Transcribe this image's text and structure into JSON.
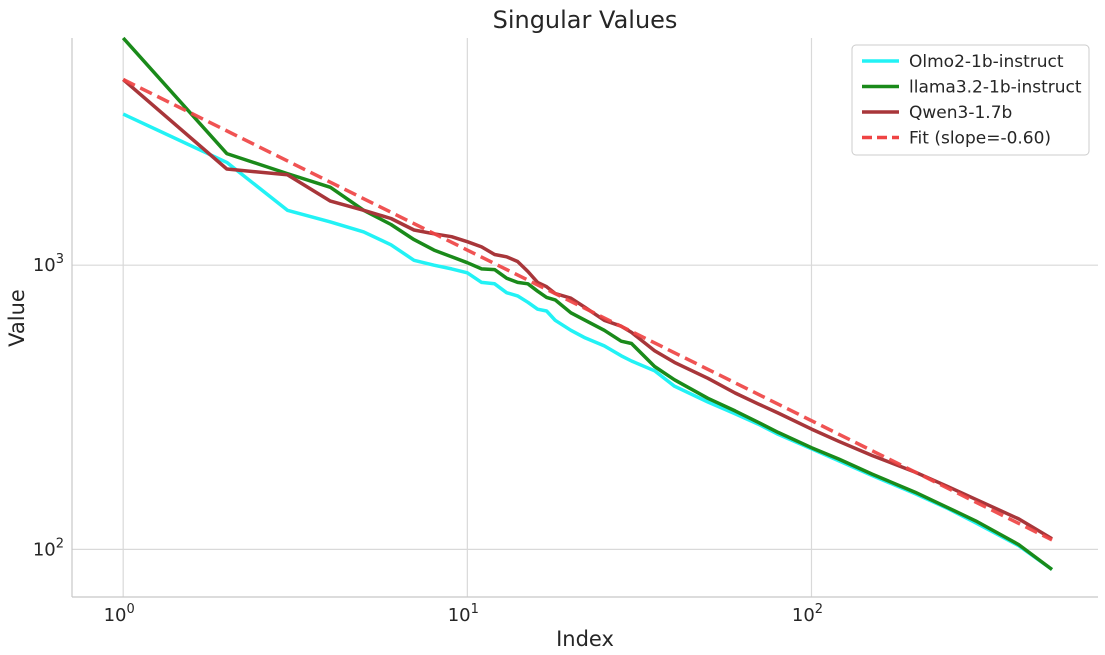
{
  "chart_data": {
    "type": "line",
    "title": "Singular Values",
    "xlabel": "Index",
    "ylabel": "Value",
    "xscale": "log",
    "yscale": "log",
    "xlim": [
      0.71,
      680
    ],
    "ylim": [
      68,
      6300
    ],
    "grid": true,
    "legend_position": "top-right",
    "x_ticks": [
      {
        "value": 1,
        "base": "10",
        "exp": "0"
      },
      {
        "value": 10,
        "base": "10",
        "exp": "1"
      },
      {
        "value": 100,
        "base": "10",
        "exp": "2"
      }
    ],
    "y_ticks": [
      {
        "value": 100,
        "base": "10",
        "exp": "2"
      },
      {
        "value": 1000,
        "base": "10",
        "exp": "3"
      }
    ],
    "series": [
      {
        "name": "Olmo2-1b-instruct",
        "color": "#22f2f5",
        "dash": "solid",
        "x": [
          1,
          2,
          3,
          4,
          5,
          6,
          7,
          8,
          9,
          10,
          11,
          12,
          13,
          14,
          15,
          16,
          17,
          18,
          20,
          22,
          25,
          28,
          30,
          35,
          40,
          50,
          60,
          70,
          80,
          100,
          120,
          150,
          200,
          250,
          300,
          400,
          500
        ],
        "y": [
          3400,
          2300,
          1560,
          1420,
          1310,
          1180,
          1040,
          1000,
          970,
          940,
          870,
          860,
          800,
          780,
          740,
          700,
          690,
          640,
          590,
          555,
          520,
          480,
          460,
          425,
          375,
          330,
          300,
          276,
          254,
          226,
          205,
          182,
          157,
          139,
          124,
          103,
          85
        ]
      },
      {
        "name": "llama3.2-1b-instruct",
        "color": "#1a8a1a",
        "dash": "solid",
        "x": [
          1,
          2,
          3,
          4,
          5,
          6,
          7,
          8,
          9,
          10,
          11,
          12,
          13,
          14,
          15,
          16,
          17,
          18,
          20,
          22,
          25,
          28,
          30,
          35,
          40,
          50,
          60,
          70,
          80,
          100,
          120,
          150,
          200,
          250,
          300,
          400,
          500
        ],
        "y": [
          6300,
          2470,
          2100,
          1880,
          1560,
          1390,
          1230,
          1130,
          1070,
          1020,
          970,
          965,
          900,
          870,
          860,
          810,
          770,
          755,
          680,
          640,
          590,
          540,
          530,
          440,
          395,
          340,
          307,
          280,
          258,
          228,
          208,
          184,
          159,
          140,
          126,
          104,
          85
        ]
      },
      {
        "name": "Qwen3-1.7b",
        "color": "#a8363a",
        "dash": "solid",
        "x": [
          1,
          2,
          3,
          4,
          5,
          6,
          7,
          8,
          9,
          10,
          11,
          12,
          13,
          14,
          15,
          16,
          17,
          18,
          20,
          22,
          25,
          28,
          30,
          35,
          40,
          50,
          60,
          70,
          80,
          100,
          120,
          150,
          200,
          250,
          300,
          400,
          500
        ],
        "y": [
          4500,
          2180,
          2080,
          1680,
          1560,
          1460,
          1330,
          1290,
          1260,
          1210,
          1160,
          1090,
          1070,
          1030,
          950,
          870,
          840,
          795,
          765,
          710,
          640,
          610,
          580,
          500,
          455,
          400,
          355,
          325,
          302,
          265,
          240,
          214,
          187,
          166,
          150,
          128,
          109
        ]
      },
      {
        "name": "Fit (slope=-0.60)",
        "color": "#ef4444",
        "dash": "dashed",
        "x": [
          1,
          500
        ],
        "y": [
          4500,
          108
        ]
      }
    ]
  }
}
